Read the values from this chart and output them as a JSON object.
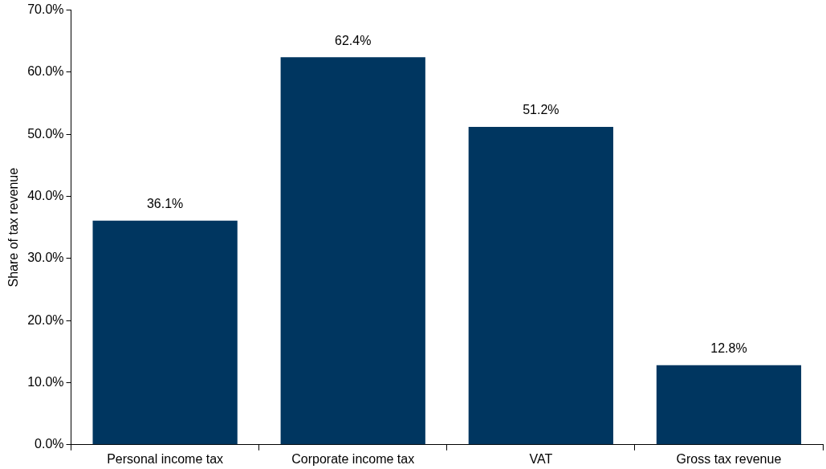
{
  "chart_data": {
    "type": "bar",
    "ylabel": "Share of tax revenue",
    "categories": [
      "Personal income tax",
      "Corporate income tax",
      "VAT",
      "Gross tax revenue"
    ],
    "values": [
      36.1,
      62.4,
      51.2,
      12.8
    ],
    "value_labels": [
      "36.1%",
      "62.4%",
      "51.2%",
      "12.8%"
    ],
    "color": "#003660",
    "ylim": [
      0,
      70
    ],
    "yticks": [
      {
        "value": 0,
        "label": "0.0%"
      },
      {
        "value": 10,
        "label": "10.0%"
      },
      {
        "value": 20,
        "label": "20.0%"
      },
      {
        "value": 30,
        "label": "30.0%"
      },
      {
        "value": 40,
        "label": "40.0%"
      },
      {
        "value": 50,
        "label": "50.0%"
      },
      {
        "value": 60,
        "label": "60.0%"
      },
      {
        "value": 70,
        "label": "70.0%"
      }
    ],
    "grid": false,
    "legend": false
  }
}
